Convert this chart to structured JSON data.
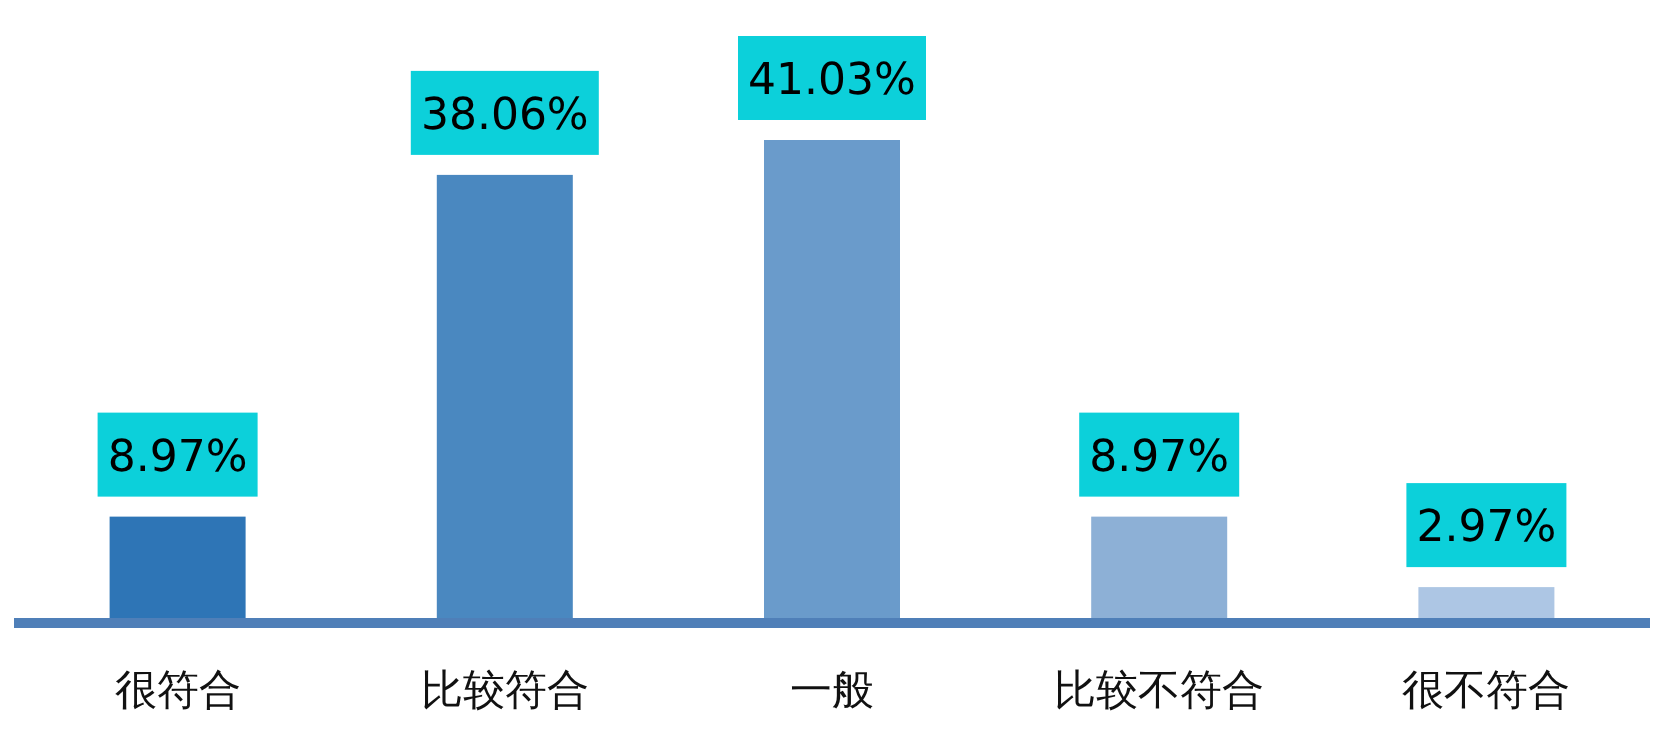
{
  "chart_data": {
    "type": "bar",
    "categories": [
      "很符合",
      "比较符合",
      "一般",
      "比较不符合",
      "很不符合"
    ],
    "values": [
      8.97,
      38.06,
      41.03,
      8.97,
      2.97
    ],
    "value_labels": [
      "8.97%",
      "38.06%",
      "41.03%",
      "8.97%",
      "2.97%"
    ],
    "colors": [
      "#2e75b6",
      "#4a88c0",
      "#6a9bcb",
      "#8db0d6",
      "#adc6e4"
    ]
  }
}
